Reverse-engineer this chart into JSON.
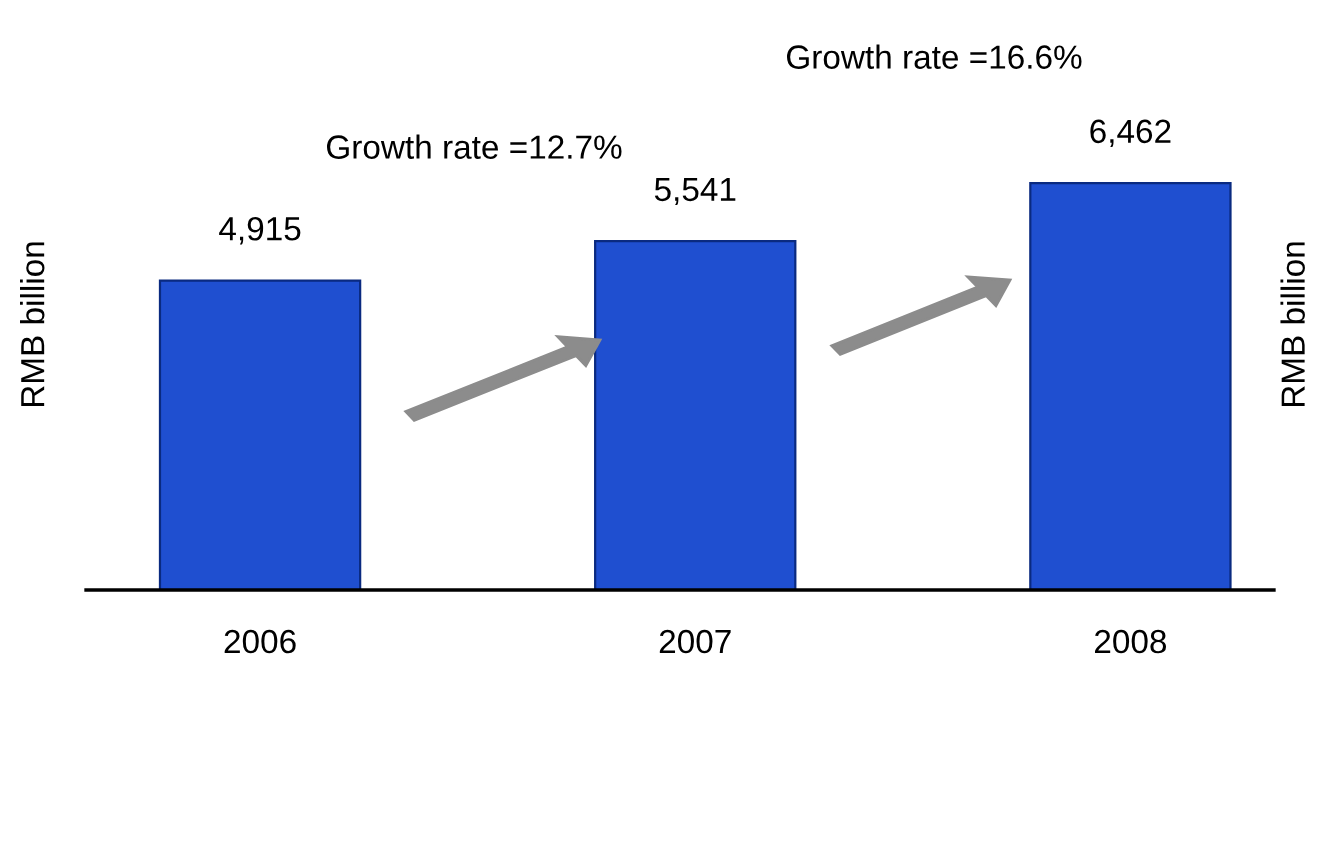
{
  "chart_data": {
    "type": "bar",
    "categories": [
      "2006",
      "2007",
      "2008"
    ],
    "values": [
      4915,
      5541,
      6462
    ],
    "color": "#1f4fd0",
    "tick_labels": "x",
    "data_labels": true,
    "value_labels": [
      "4,915",
      "5,541",
      "6,462"
    ],
    "ylabel": "RMB billion",
    "annotations": [
      "Growth rate =12.7%",
      "Growth rate =16.6%",
      "RMB billion"
    ]
  }
}
